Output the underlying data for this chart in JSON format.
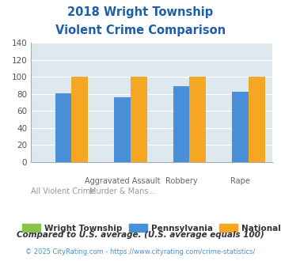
{
  "title_line1": "2018 Wright Township",
  "title_line2": "Violent Crime Comparison",
  "title_color": "#1e5fa8",
  "groups": [
    {
      "label_top": "",
      "label_bottom": "All Violent Crime",
      "wright": 0,
      "pennsylvania": 81,
      "national": 100
    },
    {
      "label_top": "Aggravated Assault",
      "label_bottom": "Murder & Mans...",
      "wright": 0,
      "pennsylvania": 76,
      "national": 100
    },
    {
      "label_top": "Robbery",
      "label_bottom": "",
      "wright": 0,
      "pennsylvania": 89,
      "national": 100
    },
    {
      "label_top": "Rape",
      "label_bottom": "",
      "wright": 0,
      "pennsylvania": 83,
      "national": 100
    }
  ],
  "wright_color": "#8bc34a",
  "pennsylvania_color": "#4a90d9",
  "national_color": "#f5a623",
  "background_color": "#dde8ef",
  "plot_bg_color": "#dde8ef",
  "ylim": [
    0,
    140
  ],
  "yticks": [
    0,
    20,
    40,
    60,
    80,
    100,
    120,
    140
  ],
  "legend_labels": [
    "Wright Township",
    "Pennsylvania",
    "National"
  ],
  "footnote1": "Compared to U.S. average. (U.S. average equals 100)",
  "footnote2": "© 2025 CityRating.com - https://www.cityrating.com/crime-statistics/",
  "footnote1_color": "#333333",
  "footnote2_color": "#4a90d9"
}
